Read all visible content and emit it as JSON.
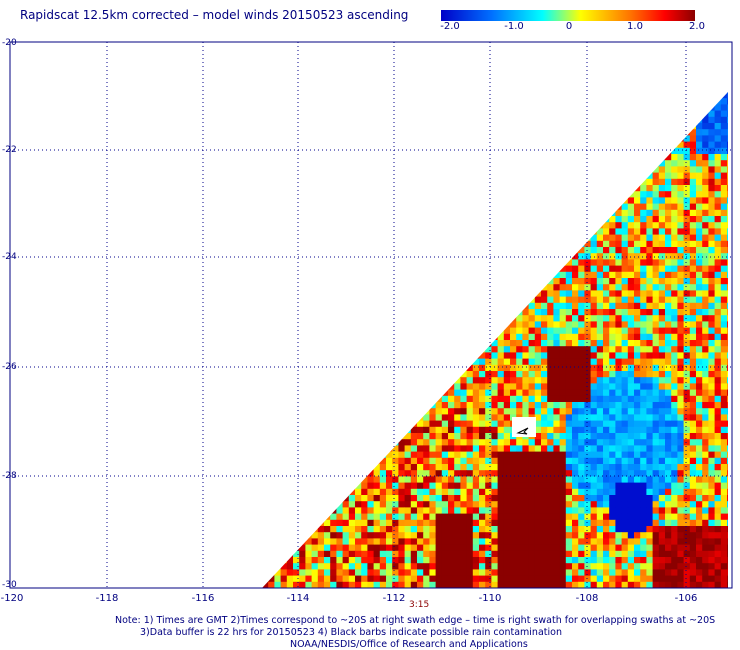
{
  "title": "Rapidscat 12.5km corrected – model winds 20150523 ascending",
  "colorbar": {
    "labels": [
      "-2.0",
      "-1.0",
      "0",
      "1.0",
      "2.0"
    ],
    "range": [
      -2.0,
      2.0
    ],
    "colors": [
      "#0000d0",
      "#00a0ff",
      "#00ffff",
      "#ffff00",
      "#ff8000",
      "#ff0000",
      "#8b0000"
    ]
  },
  "lat_labels": [
    "-20",
    "-22",
    "-24",
    "-26",
    "-28",
    "-30"
  ],
  "lon_labels": [
    "-120",
    "-118",
    "-116",
    "-114",
    "-112",
    "-110",
    "-108",
    "-106"
  ],
  "lat_range": [
    -30,
    -20
  ],
  "lon_range": [
    -120,
    -105.3
  ],
  "time_label": "3:15",
  "notes": [
    "Note: 1) Times are GMT 2)Times correspond to ~20S at right swath edge – time is right swath for overlapping swaths at ~20S",
    "3)Data buffer is 22 hrs for 20150523 4) Black barbs indicate possible rain contamination",
    "NOAA/NESDIS/Office of Research and Applications"
  ],
  "colors": {
    "text": "#000080",
    "grid": "#00008b",
    "time": "#8b0000"
  }
}
